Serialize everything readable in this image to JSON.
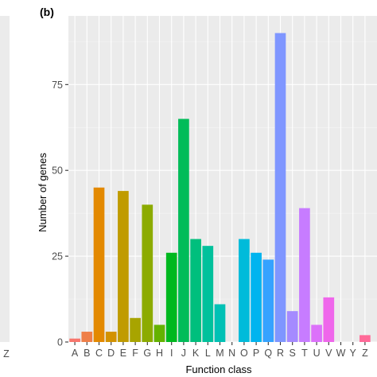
{
  "chart_data": {
    "type": "bar",
    "panel_label": "(b)",
    "left_panel_fragment": {
      "tick_label": "Z"
    },
    "xlabel": "Function class",
    "ylabel": "Number of genes",
    "ylim": [
      0,
      95
    ],
    "yticks": [
      0,
      25,
      50,
      75
    ],
    "grid": true,
    "background": "#EBEBEB",
    "categories": [
      "A",
      "B",
      "C",
      "D",
      "E",
      "F",
      "G",
      "H",
      "I",
      "J",
      "K",
      "L",
      "M",
      "N",
      "O",
      "P",
      "Q",
      "R",
      "S",
      "T",
      "U",
      "V",
      "W",
      "Y",
      "Z"
    ],
    "values": [
      1,
      3,
      45,
      3,
      44,
      7,
      40,
      5,
      26,
      65,
      30,
      28,
      11,
      0,
      30,
      26,
      24,
      90,
      9,
      39,
      5,
      13,
      0,
      0,
      2
    ],
    "colors": [
      "#F8766D",
      "#EF7F49",
      "#E38900",
      "#D39200",
      "#C09B00",
      "#A8A400",
      "#8CAB00",
      "#64B200",
      "#00B81F",
      "#00BC59",
      "#00BF7D",
      "#00C19C",
      "#00C1B5",
      "#00BFC4",
      "#00BBDA",
      "#00B4EF",
      "#35A2FF",
      "#7F96FF",
      "#A58AFF",
      "#C77CFF",
      "#DC71FA",
      "#EF67EB",
      "#FA62DB",
      "#FF61C3",
      "#FF6A98"
    ]
  }
}
